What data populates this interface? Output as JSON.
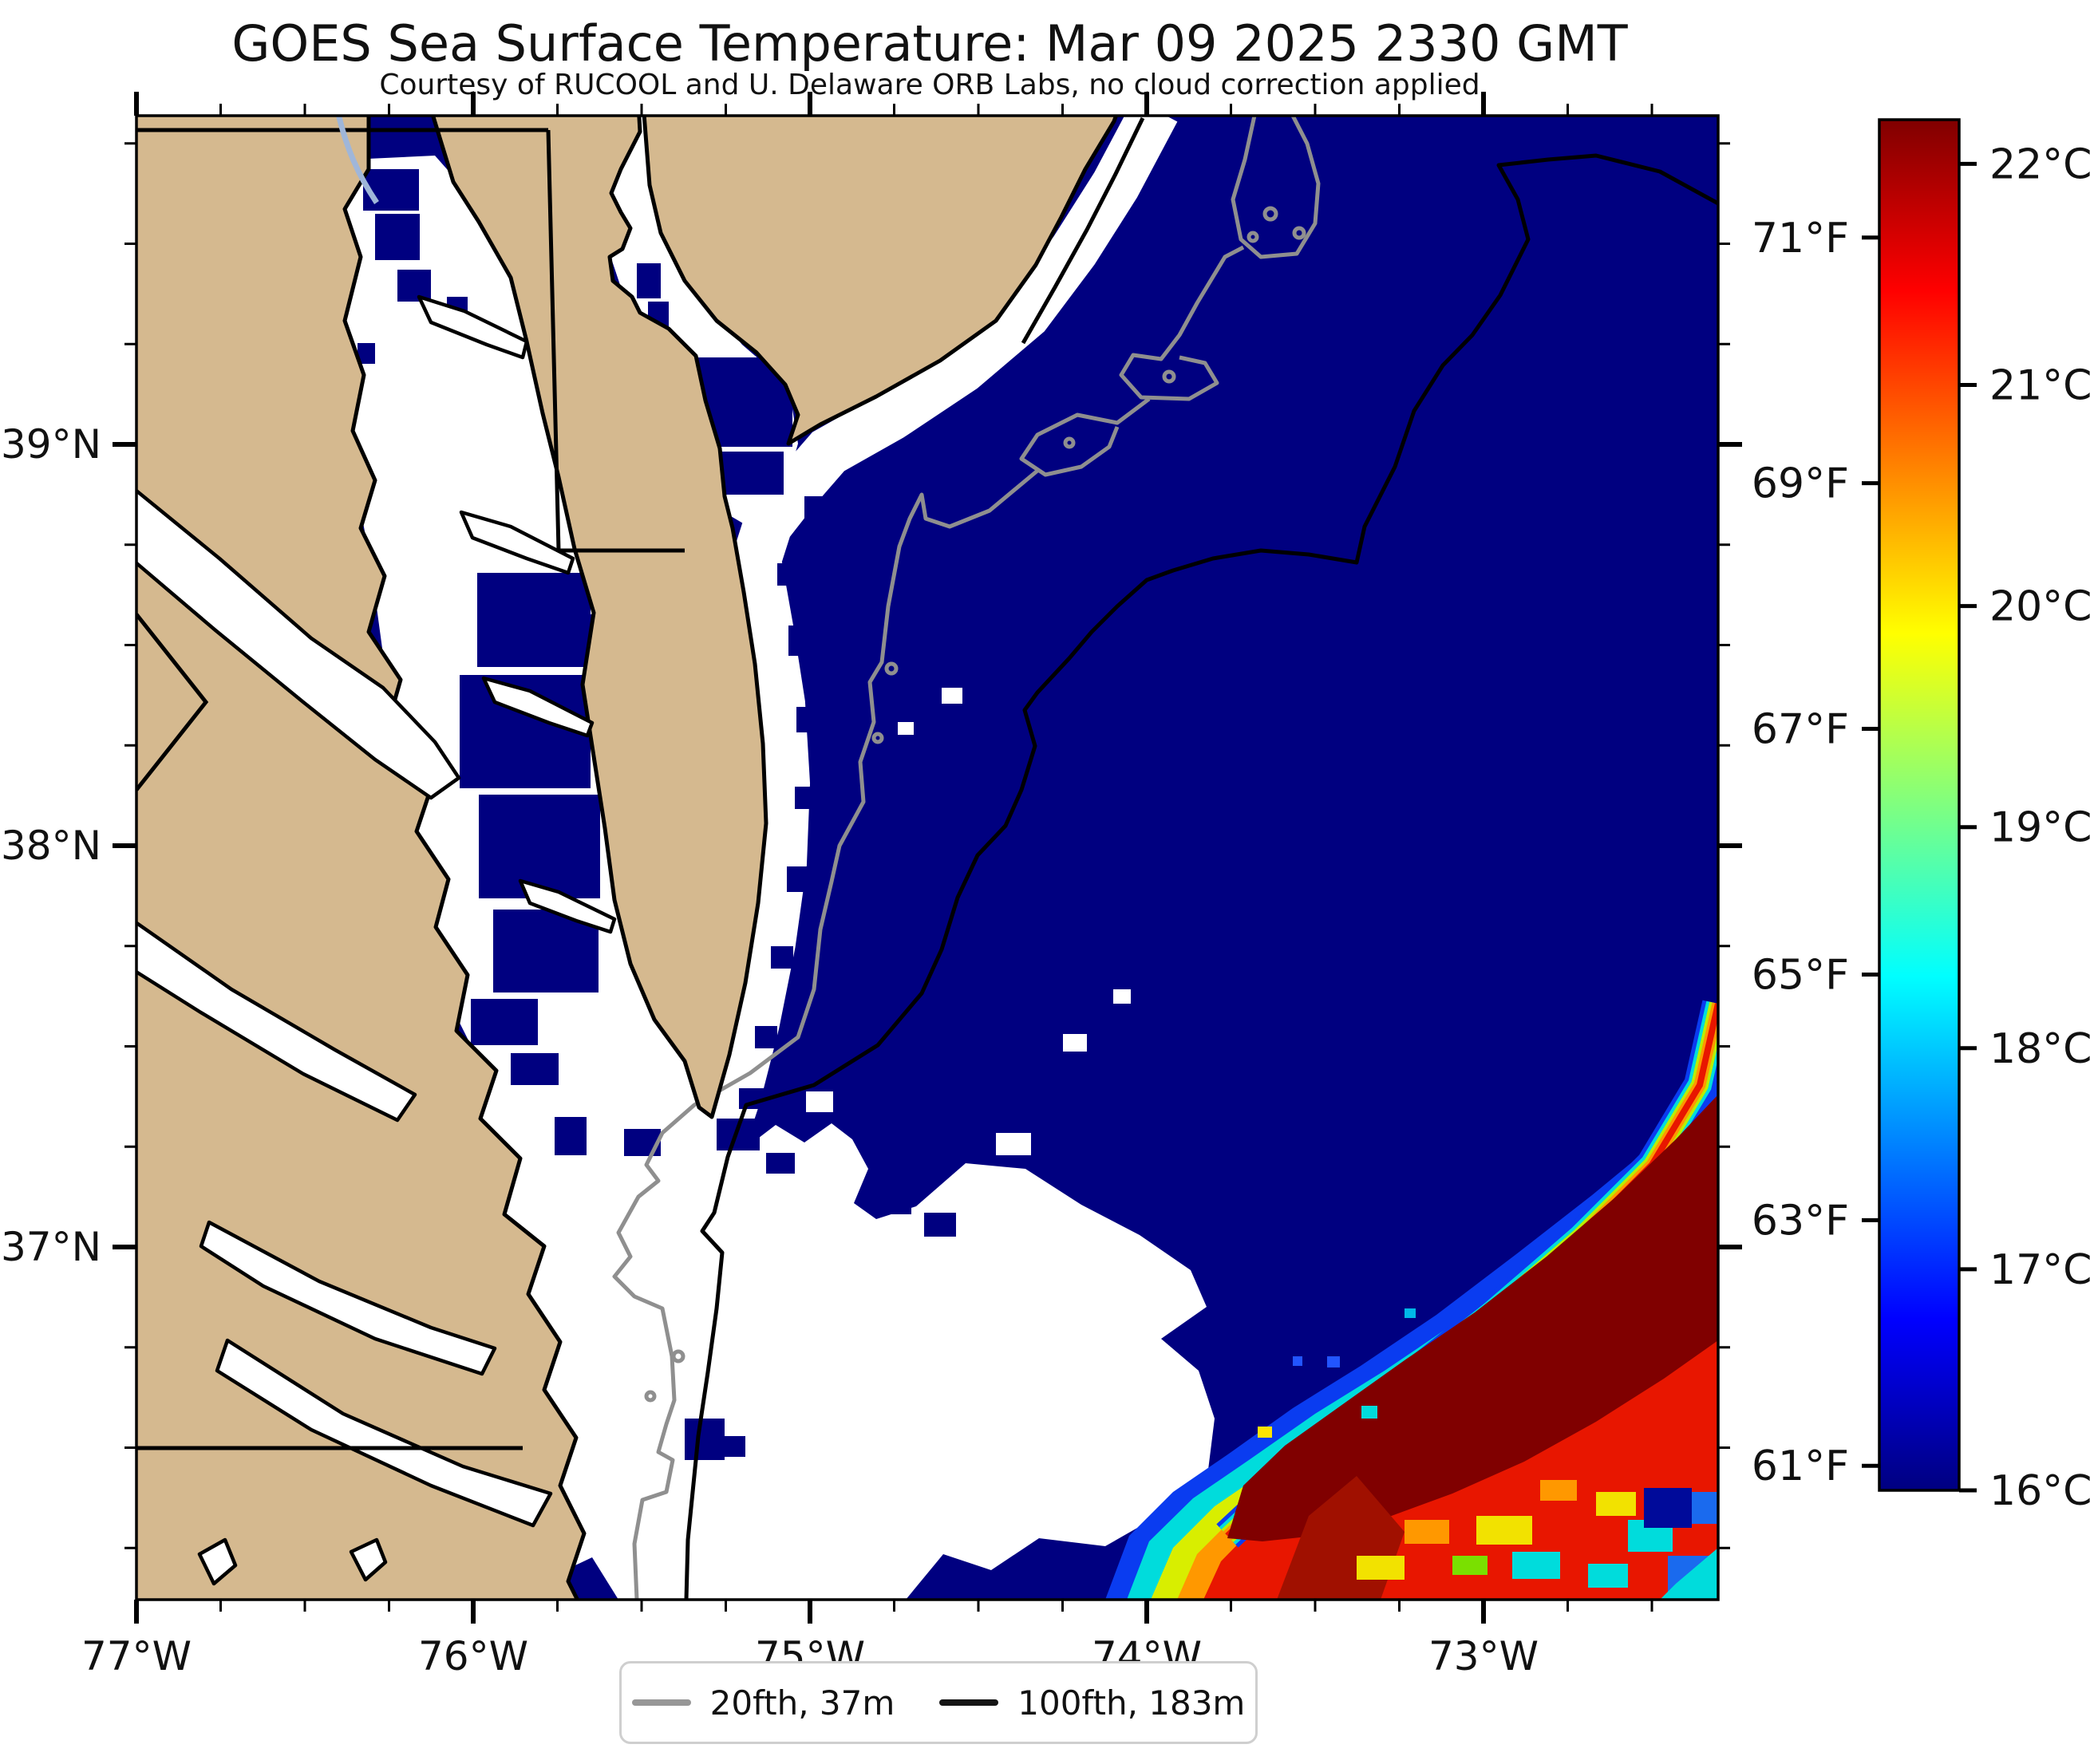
{
  "title": "GOES Sea Surface Temperature: Mar 09 2025 2330 GMT",
  "subtitle": "Courtesy of RUCOOL and U. Delaware ORB Labs, no cloud correction applied",
  "axes": {
    "x": {
      "major_labels": [
        "77°W",
        "76°W",
        "75°W",
        "74°W",
        "73°W"
      ],
      "major_values": [
        77,
        76,
        75,
        74,
        73
      ],
      "minor_step_deg": 0.25
    },
    "y": {
      "major_labels": [
        "39°N",
        "38°N",
        "37°N"
      ],
      "major_values": [
        39,
        38,
        37
      ],
      "minor_step_deg": 0.25
    }
  },
  "colorbar": {
    "celsius_labels": [
      "22°C",
      "21°C",
      "20°C",
      "19°C",
      "18°C",
      "17°C",
      "16°C"
    ],
    "celsius_values": [
      22,
      21,
      20,
      19,
      18,
      17,
      16
    ],
    "fahrenheit_labels": [
      "71°F",
      "69°F",
      "67°F",
      "65°F",
      "63°F",
      "61°F"
    ],
    "fahrenheit_values": [
      71,
      69,
      67,
      65,
      63,
      61
    ],
    "min_celsius": 16,
    "max_celsius": 22.2,
    "colormap": "jet"
  },
  "legend": {
    "items": [
      {
        "label": "20fth, 37m",
        "color": "#979797"
      },
      {
        "label": "100fth, 183m",
        "color": "#151515"
      }
    ]
  },
  "colors": {
    "land": "#d5b98f",
    "cold_water": "#000080",
    "cloud_no_data": "#ffffff",
    "warm_core": "#800000",
    "contour_20fth": "#8f8f8f",
    "contour_100fth": "#000000",
    "river": "#9fb6d9"
  },
  "chart_data": {
    "type": "heatmap",
    "title": "GOES Sea Surface Temperature: Mar 09 2025 2330 GMT",
    "colorbar_range_c": [
      16,
      22.2
    ],
    "colorbar_ticks_c": [
      16,
      17,
      18,
      19,
      20,
      21,
      22
    ],
    "colorbar_ticks_f": [
      61,
      63,
      65,
      67,
      69,
      71
    ],
    "x_axis": {
      "label": "longitude",
      "ticks": [
        "77°W",
        "76°W",
        "75°W",
        "74°W",
        "73°W"
      ]
    },
    "y_axis": {
      "label": "latitude",
      "ticks": [
        "37°N",
        "38°N",
        "39°N"
      ]
    },
    "features": [
      {
        "name": "cold shelf water",
        "approx_temp_c": 16,
        "color": "#000080"
      },
      {
        "name": "Gulf Stream warm eddy",
        "approx_temp_c": 22,
        "color": "#800000",
        "location": "southeast corner"
      },
      {
        "name": "cloud / no-data mask",
        "color": "#ffffff",
        "location": "south-central and Chesapeake Bay"
      },
      {
        "name": "20 fathom (37 m) isobath",
        "color": "#8f8f8f"
      },
      {
        "name": "100 fathom (183 m) isobath",
        "color": "#000000"
      }
    ]
  }
}
